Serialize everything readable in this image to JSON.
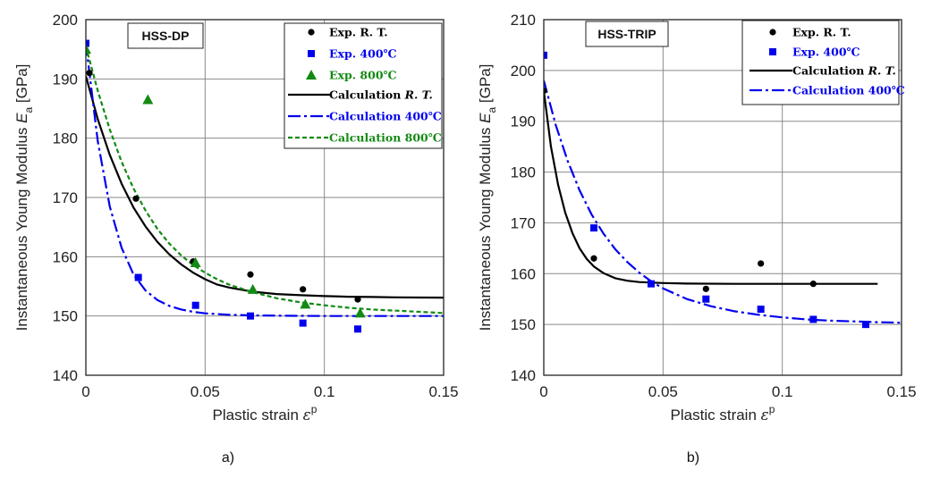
{
  "figure": {
    "panel_labels": [
      "a)",
      "b)"
    ]
  },
  "chart_data": [
    {
      "type": "scatter",
      "panel": "a)",
      "tag": "HSS-DP",
      "xlabel_text": "Plastic strain ",
      "xlabel_symbol": "ε",
      "xlabel_sup": "p",
      "ylabel_text": "Instantaneous Young Modulus ",
      "ylabel_symbol": "E",
      "ylabel_sub": "a",
      "ylabel_unit": " [GPa]",
      "xlim": [
        0,
        0.15
      ],
      "ylim": [
        140,
        200
      ],
      "xticks": [
        0,
        0.05,
        0.1,
        0.15
      ],
      "xtick_labels": [
        "0",
        "0.05",
        "0.1",
        "0.15"
      ],
      "yticks": [
        140,
        150,
        160,
        170,
        180,
        190,
        200
      ],
      "ytick_labels": [
        "140",
        "150",
        "160",
        "170",
        "180",
        "190",
        "200"
      ],
      "grid": true,
      "legend_position": "top-right",
      "series": [
        {
          "name": "Exp. R. T.",
          "legend_label": "Exp. R. T.",
          "kind": "points",
          "marker": "circle",
          "color": "#000000",
          "x": [
            0.0015,
            0.021,
            0.045,
            0.069,
            0.091,
            0.114
          ],
          "y": [
            191.0,
            169.8,
            159.2,
            157.0,
            154.5,
            152.8
          ]
        },
        {
          "name": "Exp. 400°C",
          "legend_label": "Exp. 400℃",
          "kind": "points",
          "marker": "square",
          "color": "#0000ee",
          "x": [
            0.0,
            0.022,
            0.046,
            0.069,
            0.091,
            0.114
          ],
          "y": [
            196.0,
            156.5,
            151.8,
            150.0,
            148.8,
            147.8
          ]
        },
        {
          "name": "Exp. 800°C",
          "legend_label": "Exp. 800℃",
          "kind": "points",
          "marker": "triangle",
          "color": "#138a13",
          "x": [
            0.0,
            0.026,
            0.046,
            0.07,
            0.092,
            0.115
          ],
          "y": [
            195.0,
            186.5,
            159.0,
            154.5,
            152.0,
            150.5
          ]
        },
        {
          "name": "Calculation R. T.",
          "legend_label": "Calculation ",
          "legend_italic": "R. T.",
          "kind": "line",
          "dash": "",
          "color": "#000000",
          "x": [
            0,
            0.005,
            0.01,
            0.015,
            0.02,
            0.025,
            0.03,
            0.035,
            0.04,
            0.045,
            0.05,
            0.055,
            0.06,
            0.07,
            0.08,
            0.09,
            0.1,
            0.11,
            0.12,
            0.13,
            0.14,
            0.15
          ],
          "y": [
            190.5,
            183.2,
            177.2,
            172.3,
            168.3,
            165.1,
            162.5,
            160.4,
            158.7,
            157.3,
            156.2,
            155.3,
            154.8,
            154.1,
            153.7,
            153.5,
            153.35,
            153.25,
            153.2,
            153.15,
            153.12,
            153.1
          ]
        },
        {
          "name": "Calculation 400°C",
          "legend_label": "Calculation 400℃",
          "kind": "line",
          "dash": "14 4 3 4",
          "color": "#0000ee",
          "x": [
            0,
            0.005,
            0.01,
            0.015,
            0.02,
            0.025,
            0.03,
            0.035,
            0.04,
            0.045,
            0.05,
            0.06,
            0.07,
            0.08,
            0.1,
            0.12,
            0.15
          ],
          "y": [
            196.0,
            179.5,
            168.5,
            161.5,
            157.0,
            154.3,
            152.7,
            151.7,
            151.1,
            150.7,
            150.45,
            150.2,
            150.1,
            150.05,
            150.0,
            150.0,
            150.0
          ]
        },
        {
          "name": "Calculation 800°C",
          "legend_label": "Calculation 800℃",
          "kind": "line",
          "dash": "5 3",
          "color": "#138a13",
          "x": [
            0,
            0.005,
            0.01,
            0.015,
            0.02,
            0.025,
            0.03,
            0.035,
            0.04,
            0.045,
            0.05,
            0.055,
            0.06,
            0.07,
            0.08,
            0.09,
            0.1,
            0.11,
            0.12,
            0.13,
            0.14,
            0.15
          ],
          "y": [
            195.5,
            188.0,
            181.5,
            176.0,
            171.5,
            167.8,
            164.7,
            162.2,
            160.2,
            158.6,
            157.3,
            156.2,
            155.3,
            154.0,
            153.0,
            152.3,
            151.8,
            151.4,
            151.1,
            150.9,
            150.7,
            150.5
          ]
        }
      ]
    },
    {
      "type": "scatter",
      "panel": "b)",
      "tag": "HSS-TRIP",
      "xlabel_text": "Plastic strain ",
      "xlabel_symbol": "ε",
      "xlabel_sup": "p",
      "ylabel_text": "Instantaneous Young Modulus ",
      "ylabel_symbol": "E",
      "ylabel_sub": "a",
      "ylabel_unit": " [GPa]",
      "xlim": [
        0,
        0.15
      ],
      "ylim": [
        140,
        210
      ],
      "xticks": [
        0,
        0.05,
        0.1,
        0.15
      ],
      "xtick_labels": [
        "0",
        "0.05",
        "0.1",
        "0.15"
      ],
      "yticks": [
        140,
        150,
        160,
        170,
        180,
        190,
        200,
        210
      ],
      "ytick_labels": [
        "140",
        "150",
        "160",
        "170",
        "180",
        "190",
        "200",
        "210"
      ],
      "grid": true,
      "legend_position": "top-right",
      "series": [
        {
          "name": "Exp. R. T.",
          "legend_label": "Exp. R. T.",
          "kind": "points",
          "marker": "circle",
          "color": "#000000",
          "x": [
            0.0,
            0.021,
            0.068,
            0.091,
            0.113
          ],
          "y": [
            196.0,
            163.0,
            157.0,
            162.0,
            158.0
          ]
        },
        {
          "name": "Exp. 400°C",
          "legend_label": "Exp. 400℃",
          "kind": "points",
          "marker": "square",
          "color": "#0000ee",
          "x": [
            0.0,
            0.021,
            0.045,
            0.068,
            0.091,
            0.113,
            0.135
          ],
          "y": [
            203.0,
            169.0,
            158.0,
            155.0,
            153.0,
            151.0,
            150.0
          ]
        },
        {
          "name": "Calculation R. T.",
          "legend_label": "Calculation ",
          "legend_italic": "R. T.",
          "kind": "line",
          "dash": "",
          "color": "#000000",
          "x": [
            0,
            0.003,
            0.006,
            0.009,
            0.012,
            0.015,
            0.018,
            0.021,
            0.025,
            0.03,
            0.035,
            0.04,
            0.05,
            0.06,
            0.08,
            0.1,
            0.12,
            0.14
          ],
          "y": [
            196.0,
            185.0,
            177.5,
            172.0,
            168.0,
            165.0,
            162.9,
            161.4,
            160.1,
            159.1,
            158.6,
            158.35,
            158.15,
            158.05,
            158.0,
            158.0,
            158.0,
            158.0
          ]
        },
        {
          "name": "Calculation 400°C",
          "legend_label": "Calculation 400℃",
          "kind": "line",
          "dash": "14 4 3 4",
          "color": "#0000ee",
          "x": [
            0,
            0.005,
            0.01,
            0.015,
            0.02,
            0.025,
            0.03,
            0.035,
            0.04,
            0.045,
            0.05,
            0.06,
            0.07,
            0.08,
            0.09,
            0.1,
            0.11,
            0.12,
            0.13,
            0.14,
            0.15
          ],
          "y": [
            198.0,
            189.3,
            182.2,
            176.4,
            171.7,
            167.9,
            164.8,
            162.3,
            160.2,
            158.5,
            157.1,
            155.0,
            153.6,
            152.6,
            151.9,
            151.4,
            151.0,
            150.75,
            150.6,
            150.45,
            150.35
          ]
        }
      ]
    }
  ]
}
